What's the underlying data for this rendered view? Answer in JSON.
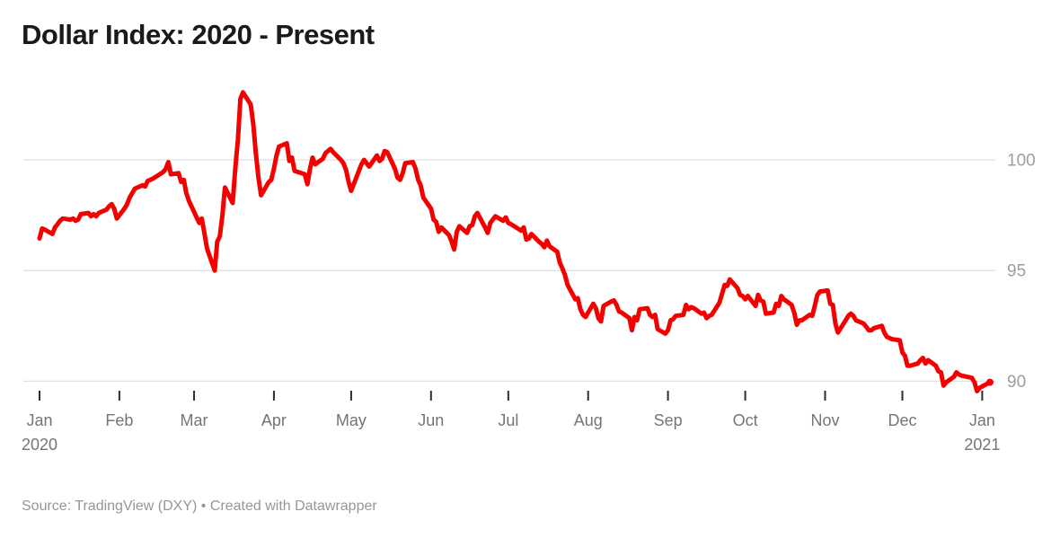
{
  "title": "Dollar Index: 2020 - Present",
  "footer": "Source: TradingView (DXY) • Created with Datawrapper",
  "colors": {
    "line": "#f40000",
    "grid": "#e1e1e1",
    "tick": "#2e2e2e",
    "month_label": "#757575",
    "value_label": "#9e9e9e",
    "title": "#1a1a1a",
    "footer": "#969696",
    "background": "#ffffff"
  },
  "chart_data": {
    "type": "line",
    "title": "Dollar Index: 2020 - Present",
    "source": "TradingView (DXY)",
    "created_with": "Datawrapper",
    "grid": true,
    "legend": false,
    "x_axis": {
      "start": "2020-01-01",
      "end": "2021-01-04",
      "ticks": [
        {
          "date": "2020-01-01",
          "label": "Jan",
          "sublabel": "2020"
        },
        {
          "date": "2020-02-01",
          "label": "Feb"
        },
        {
          "date": "2020-03-01",
          "label": "Mar"
        },
        {
          "date": "2020-04-01",
          "label": "Apr"
        },
        {
          "date": "2020-05-01",
          "label": "May"
        },
        {
          "date": "2020-06-01",
          "label": "Jun"
        },
        {
          "date": "2020-07-01",
          "label": "Jul"
        },
        {
          "date": "2020-08-01",
          "label": "Aug"
        },
        {
          "date": "2020-09-01",
          "label": "Sep"
        },
        {
          "date": "2020-10-01",
          "label": "Oct"
        },
        {
          "date": "2020-11-01",
          "label": "Nov"
        },
        {
          "date": "2020-12-01",
          "label": "Dec"
        },
        {
          "date": "2021-01-01",
          "label": "Jan",
          "sublabel": "2021"
        }
      ]
    },
    "y_axis": {
      "position": "right",
      "min": 89.2,
      "max": 103.4,
      "ticks": [
        {
          "value": 100,
          "label": "100"
        },
        {
          "value": 95,
          "label": "95"
        },
        {
          "value": 90,
          "label": "90"
        }
      ]
    },
    "series": [
      {
        "name": "DXY",
        "color": "#f40000",
        "points": [
          [
            "2020-01-01",
            96.45
          ],
          [
            "2020-01-02",
            96.9
          ],
          [
            "2020-01-03",
            96.85
          ],
          [
            "2020-01-06",
            96.65
          ],
          [
            "2020-01-07",
            96.95
          ],
          [
            "2020-01-08",
            97.1
          ],
          [
            "2020-01-09",
            97.25
          ],
          [
            "2020-01-10",
            97.35
          ],
          [
            "2020-01-13",
            97.3
          ],
          [
            "2020-01-14",
            97.35
          ],
          [
            "2020-01-15",
            97.25
          ],
          [
            "2020-01-16",
            97.3
          ],
          [
            "2020-01-17",
            97.55
          ],
          [
            "2020-01-20",
            97.6
          ],
          [
            "2020-01-21",
            97.45
          ],
          [
            "2020-01-22",
            97.55
          ],
          [
            "2020-01-23",
            97.45
          ],
          [
            "2020-01-24",
            97.6
          ],
          [
            "2020-01-27",
            97.75
          ],
          [
            "2020-01-28",
            97.9
          ],
          [
            "2020-01-29",
            98.0
          ],
          [
            "2020-01-30",
            97.8
          ],
          [
            "2020-01-31",
            97.35
          ],
          [
            "2020-02-03",
            97.8
          ],
          [
            "2020-02-04",
            98.0
          ],
          [
            "2020-02-05",
            98.3
          ],
          [
            "2020-02-06",
            98.5
          ],
          [
            "2020-02-07",
            98.7
          ],
          [
            "2020-02-10",
            98.85
          ],
          [
            "2020-02-11",
            98.8
          ],
          [
            "2020-02-12",
            99.05
          ],
          [
            "2020-02-13",
            99.1
          ],
          [
            "2020-02-14",
            99.15
          ],
          [
            "2020-02-18",
            99.45
          ],
          [
            "2020-02-19",
            99.6
          ],
          [
            "2020-02-20",
            99.9
          ],
          [
            "2020-02-21",
            99.35
          ],
          [
            "2020-02-24",
            99.4
          ],
          [
            "2020-02-25",
            99.0
          ],
          [
            "2020-02-26",
            99.1
          ],
          [
            "2020-02-27",
            98.5
          ],
          [
            "2020-02-28",
            98.15
          ],
          [
            "2020-03-02",
            97.4
          ],
          [
            "2020-03-03",
            97.15
          ],
          [
            "2020-03-04",
            97.35
          ],
          [
            "2020-03-05",
            96.7
          ],
          [
            "2020-03-06",
            96.0
          ],
          [
            "2020-03-09",
            95.0
          ],
          [
            "2020-03-10",
            96.3
          ],
          [
            "2020-03-11",
            96.55
          ],
          [
            "2020-03-12",
            97.5
          ],
          [
            "2020-03-13",
            98.75
          ],
          [
            "2020-03-16",
            98.05
          ],
          [
            "2020-03-17",
            99.6
          ],
          [
            "2020-03-18",
            100.9
          ],
          [
            "2020-03-19",
            102.75
          ],
          [
            "2020-03-20",
            103.05
          ],
          [
            "2020-03-23",
            102.5
          ],
          [
            "2020-03-24",
            101.6
          ],
          [
            "2020-03-25",
            100.3
          ],
          [
            "2020-03-26",
            99.2
          ],
          [
            "2020-03-27",
            98.4
          ],
          [
            "2020-03-30",
            99.0
          ],
          [
            "2020-03-31",
            99.1
          ],
          [
            "2020-04-01",
            99.6
          ],
          [
            "2020-04-02",
            100.2
          ],
          [
            "2020-04-03",
            100.6
          ],
          [
            "2020-04-06",
            100.75
          ],
          [
            "2020-04-07",
            99.95
          ],
          [
            "2020-04-08",
            100.1
          ],
          [
            "2020-04-09",
            99.5
          ],
          [
            "2020-04-13",
            99.35
          ],
          [
            "2020-04-14",
            98.9
          ],
          [
            "2020-04-15",
            99.6
          ],
          [
            "2020-04-16",
            100.1
          ],
          [
            "2020-04-17",
            99.8
          ],
          [
            "2020-04-20",
            100.05
          ],
          [
            "2020-04-21",
            100.3
          ],
          [
            "2020-04-22",
            100.4
          ],
          [
            "2020-04-23",
            100.5
          ],
          [
            "2020-04-24",
            100.35
          ],
          [
            "2020-04-27",
            100.0
          ],
          [
            "2020-04-28",
            99.85
          ],
          [
            "2020-04-29",
            99.55
          ],
          [
            "2020-04-30",
            99.0
          ],
          [
            "2020-05-01",
            98.6
          ],
          [
            "2020-05-04",
            99.5
          ],
          [
            "2020-05-05",
            99.8
          ],
          [
            "2020-05-06",
            100.0
          ],
          [
            "2020-05-07",
            99.85
          ],
          [
            "2020-05-08",
            99.7
          ],
          [
            "2020-05-11",
            100.2
          ],
          [
            "2020-05-12",
            99.95
          ],
          [
            "2020-05-13",
            100.05
          ],
          [
            "2020-05-14",
            100.4
          ],
          [
            "2020-05-15",
            100.35
          ],
          [
            "2020-05-18",
            99.6
          ],
          [
            "2020-05-19",
            99.2
          ],
          [
            "2020-05-20",
            99.1
          ],
          [
            "2020-05-21",
            99.4
          ],
          [
            "2020-05-22",
            99.85
          ],
          [
            "2020-05-25",
            99.9
          ],
          [
            "2020-05-26",
            99.6
          ],
          [
            "2020-05-27",
            99.1
          ],
          [
            "2020-05-28",
            98.85
          ],
          [
            "2020-05-29",
            98.3
          ],
          [
            "2020-06-01",
            97.8
          ],
          [
            "2020-06-02",
            97.3
          ],
          [
            "2020-06-03",
            97.2
          ],
          [
            "2020-06-04",
            96.75
          ],
          [
            "2020-06-05",
            96.95
          ],
          [
            "2020-06-08",
            96.6
          ],
          [
            "2020-06-09",
            96.3
          ],
          [
            "2020-06-10",
            95.95
          ],
          [
            "2020-06-11",
            96.75
          ],
          [
            "2020-06-12",
            97.0
          ],
          [
            "2020-06-15",
            96.7
          ],
          [
            "2020-06-16",
            97.0
          ],
          [
            "2020-06-17",
            97.05
          ],
          [
            "2020-06-18",
            97.45
          ],
          [
            "2020-06-19",
            97.6
          ],
          [
            "2020-06-22",
            96.95
          ],
          [
            "2020-06-23",
            96.7
          ],
          [
            "2020-06-24",
            97.15
          ],
          [
            "2020-06-25",
            97.3
          ],
          [
            "2020-06-26",
            97.45
          ],
          [
            "2020-06-29",
            97.25
          ],
          [
            "2020-06-30",
            97.4
          ],
          [
            "2020-07-01",
            97.15
          ],
          [
            "2020-07-02",
            97.1
          ],
          [
            "2020-07-06",
            96.8
          ],
          [
            "2020-07-07",
            96.95
          ],
          [
            "2020-07-08",
            96.4
          ],
          [
            "2020-07-09",
            96.45
          ],
          [
            "2020-07-10",
            96.65
          ],
          [
            "2020-07-13",
            96.3
          ],
          [
            "2020-07-14",
            96.2
          ],
          [
            "2020-07-15",
            96.05
          ],
          [
            "2020-07-16",
            96.35
          ],
          [
            "2020-07-17",
            96.1
          ],
          [
            "2020-07-20",
            95.85
          ],
          [
            "2020-07-21",
            95.35
          ],
          [
            "2020-07-22",
            95.1
          ],
          [
            "2020-07-23",
            94.8
          ],
          [
            "2020-07-24",
            94.35
          ],
          [
            "2020-07-27",
            93.7
          ],
          [
            "2020-07-28",
            93.75
          ],
          [
            "2020-07-29",
            93.25
          ],
          [
            "2020-07-30",
            93.0
          ],
          [
            "2020-07-31",
            92.9
          ],
          [
            "2020-08-03",
            93.5
          ],
          [
            "2020-08-04",
            93.3
          ],
          [
            "2020-08-05",
            92.85
          ],
          [
            "2020-08-06",
            92.7
          ],
          [
            "2020-08-07",
            93.4
          ],
          [
            "2020-08-10",
            93.6
          ],
          [
            "2020-08-11",
            93.65
          ],
          [
            "2020-08-12",
            93.45
          ],
          [
            "2020-08-13",
            93.15
          ],
          [
            "2020-08-14",
            93.1
          ],
          [
            "2020-08-17",
            92.85
          ],
          [
            "2020-08-18",
            92.3
          ],
          [
            "2020-08-19",
            92.9
          ],
          [
            "2020-08-20",
            92.75
          ],
          [
            "2020-08-21",
            93.25
          ],
          [
            "2020-08-24",
            93.3
          ],
          [
            "2020-08-25",
            93.0
          ],
          [
            "2020-08-26",
            92.9
          ],
          [
            "2020-08-27",
            93.0
          ],
          [
            "2020-08-28",
            92.35
          ],
          [
            "2020-08-31",
            92.15
          ],
          [
            "2020-09-01",
            92.3
          ],
          [
            "2020-09-02",
            92.75
          ],
          [
            "2020-09-03",
            92.8
          ],
          [
            "2020-09-04",
            92.95
          ],
          [
            "2020-09-07",
            93.0
          ],
          [
            "2020-09-08",
            93.45
          ],
          [
            "2020-09-09",
            93.25
          ],
          [
            "2020-09-10",
            93.35
          ],
          [
            "2020-09-11",
            93.3
          ],
          [
            "2020-09-14",
            93.05
          ],
          [
            "2020-09-15",
            93.1
          ],
          [
            "2020-09-16",
            92.85
          ],
          [
            "2020-09-17",
            92.95
          ],
          [
            "2020-09-18",
            93.0
          ],
          [
            "2020-09-21",
            93.55
          ],
          [
            "2020-09-22",
            93.95
          ],
          [
            "2020-09-23",
            94.35
          ],
          [
            "2020-09-24",
            94.3
          ],
          [
            "2020-09-25",
            94.6
          ],
          [
            "2020-09-28",
            94.2
          ],
          [
            "2020-09-29",
            93.9
          ],
          [
            "2020-09-30",
            93.85
          ],
          [
            "2020-10-01",
            93.7
          ],
          [
            "2020-10-02",
            93.85
          ],
          [
            "2020-10-05",
            93.4
          ],
          [
            "2020-10-06",
            93.9
          ],
          [
            "2020-10-07",
            93.65
          ],
          [
            "2020-10-08",
            93.6
          ],
          [
            "2020-10-09",
            93.05
          ],
          [
            "2020-10-12",
            93.1
          ],
          [
            "2020-10-13",
            93.5
          ],
          [
            "2020-10-14",
            93.4
          ],
          [
            "2020-10-15",
            93.85
          ],
          [
            "2020-10-16",
            93.7
          ],
          [
            "2020-10-19",
            93.45
          ],
          [
            "2020-10-20",
            93.1
          ],
          [
            "2020-10-21",
            92.55
          ],
          [
            "2020-10-22",
            92.75
          ],
          [
            "2020-10-23",
            92.75
          ],
          [
            "2020-10-26",
            93.0
          ],
          [
            "2020-10-27",
            92.95
          ],
          [
            "2020-10-28",
            93.4
          ],
          [
            "2020-10-29",
            93.9
          ],
          [
            "2020-10-30",
            94.05
          ],
          [
            "2020-11-02",
            94.1
          ],
          [
            "2020-11-03",
            93.5
          ],
          [
            "2020-11-04",
            93.45
          ],
          [
            "2020-11-05",
            92.6
          ],
          [
            "2020-11-06",
            92.2
          ],
          [
            "2020-11-09",
            92.75
          ],
          [
            "2020-11-10",
            92.95
          ],
          [
            "2020-11-11",
            93.05
          ],
          [
            "2020-11-12",
            92.95
          ],
          [
            "2020-11-13",
            92.75
          ],
          [
            "2020-11-16",
            92.6
          ],
          [
            "2020-11-17",
            92.45
          ],
          [
            "2020-11-18",
            92.3
          ],
          [
            "2020-11-19",
            92.3
          ],
          [
            "2020-11-20",
            92.4
          ],
          [
            "2020-11-23",
            92.5
          ],
          [
            "2020-11-24",
            92.2
          ],
          [
            "2020-11-25",
            92.0
          ],
          [
            "2020-11-27",
            91.9
          ],
          [
            "2020-11-30",
            91.85
          ],
          [
            "2020-12-01",
            91.3
          ],
          [
            "2020-12-02",
            91.15
          ],
          [
            "2020-12-03",
            90.7
          ],
          [
            "2020-12-04",
            90.7
          ],
          [
            "2020-12-07",
            90.8
          ],
          [
            "2020-12-08",
            90.95
          ],
          [
            "2020-12-09",
            91.05
          ],
          [
            "2020-12-10",
            90.8
          ],
          [
            "2020-12-11",
            90.95
          ],
          [
            "2020-12-14",
            90.7
          ],
          [
            "2020-12-15",
            90.45
          ],
          [
            "2020-12-16",
            90.4
          ],
          [
            "2020-12-17",
            89.8
          ],
          [
            "2020-12-18",
            89.95
          ],
          [
            "2020-12-21",
            90.2
          ],
          [
            "2020-12-22",
            90.4
          ],
          [
            "2020-12-23",
            90.3
          ],
          [
            "2020-12-24",
            90.25
          ],
          [
            "2020-12-28",
            90.15
          ],
          [
            "2020-12-29",
            89.95
          ],
          [
            "2020-12-30",
            89.55
          ],
          [
            "2020-12-31",
            89.7
          ],
          [
            "2021-01-04",
            89.95
          ]
        ]
      }
    ]
  }
}
